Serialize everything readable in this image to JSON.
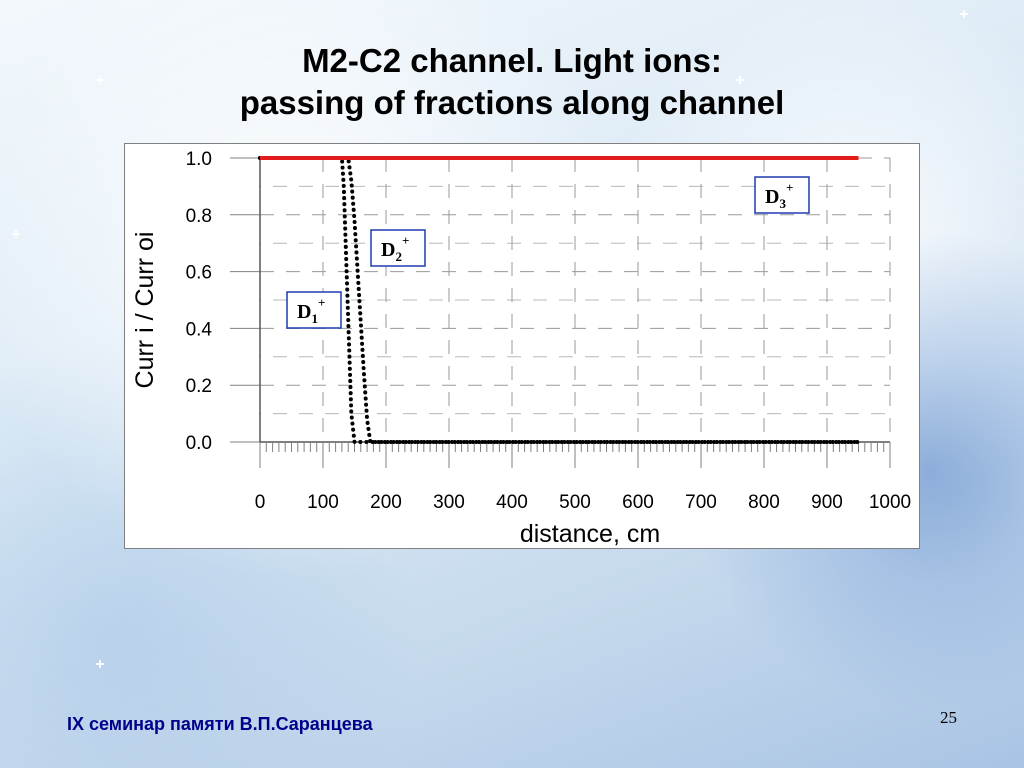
{
  "slide": {
    "title_line1": "M2-C2 channel. Light ions:",
    "title_line2": "passing of fractions along channel",
    "footer": "IX семинар памяти В.П.Саранцева",
    "page_number": "25"
  },
  "chart_data": {
    "type": "line",
    "title": "",
    "xlabel": "distance, cm",
    "ylabel": "Curr i / Curr oi",
    "xlim": [
      0,
      1000
    ],
    "ylim": [
      0,
      1
    ],
    "x_ticks": [
      "0",
      "100",
      "200",
      "300",
      "400",
      "500",
      "600",
      "700",
      "800",
      "900",
      "1000"
    ],
    "y_ticks": [
      "0.0",
      "0.2",
      "0.4",
      "0.6",
      "0.8",
      "1.0"
    ],
    "grid": "dashed",
    "series": [
      {
        "name": "D1+",
        "style": "dotted",
        "color": "#000000",
        "x": [
          0,
          130,
          133,
          136,
          139,
          142,
          145,
          150,
          950
        ],
        "y": [
          1.0,
          1.0,
          0.9,
          0.7,
          0.5,
          0.3,
          0.1,
          0.0,
          0.0
        ]
      },
      {
        "name": "D2+",
        "style": "dotted",
        "color": "#000000",
        "x": [
          0,
          140,
          145,
          150,
          155,
          160,
          165,
          170,
          175,
          950
        ],
        "y": [
          1.0,
          1.0,
          0.92,
          0.78,
          0.6,
          0.42,
          0.24,
          0.08,
          0.0,
          0.0
        ]
      },
      {
        "name": "D3+",
        "style": "solid",
        "color": "#e31b1b",
        "x": [
          0,
          950
        ],
        "y": [
          1.0,
          1.0
        ]
      }
    ],
    "labels": [
      {
        "text": "D1",
        "sup": "+",
        "series": "D1+"
      },
      {
        "text": "D2",
        "sup": "+",
        "series": "D2+"
      },
      {
        "text": "D3",
        "sup": "+",
        "series": "D3+"
      }
    ]
  }
}
